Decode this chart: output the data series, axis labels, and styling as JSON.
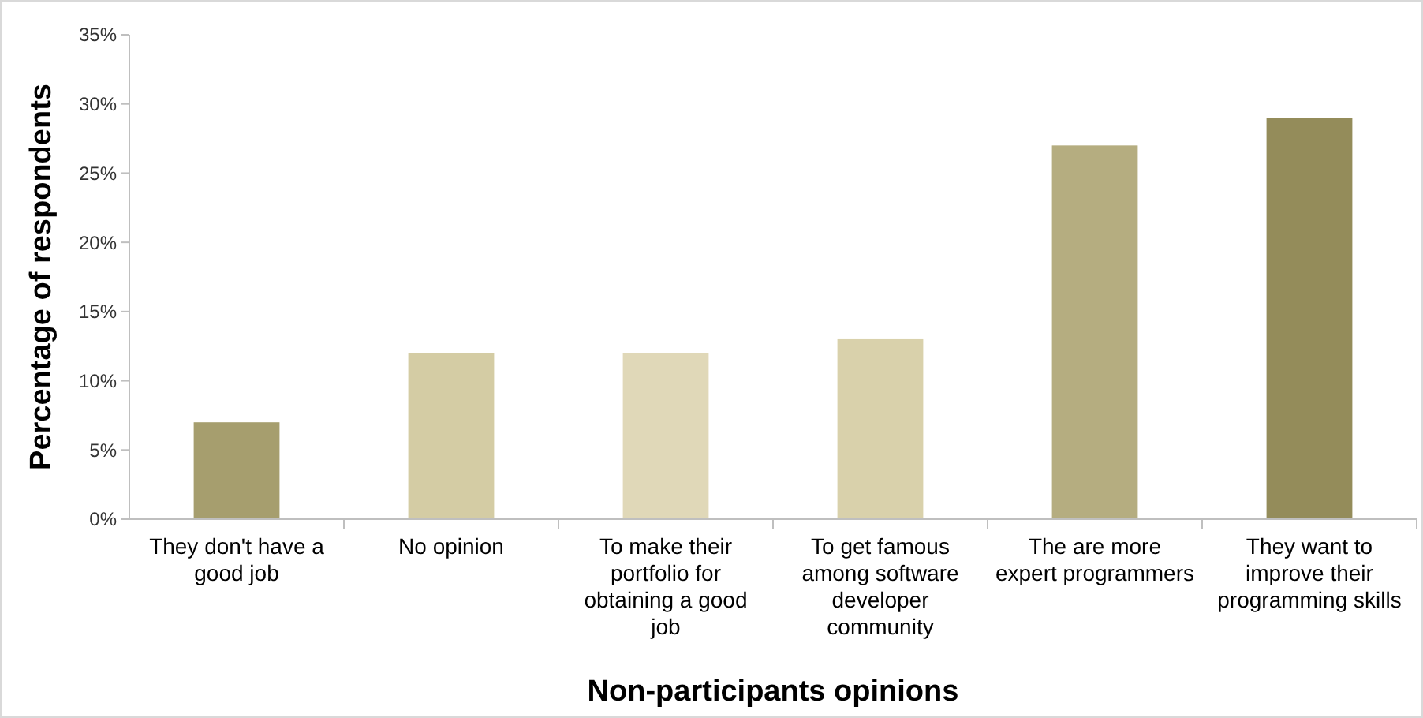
{
  "chart_data": {
    "type": "bar",
    "xlabel": "Non-participants opinions",
    "ylabel": "Percentage of respondents",
    "categories": [
      "They don't have a good job",
      "No opinion",
      "To make their portfolio for obtaining a good job",
      "To get famous among software developer community",
      "The are more expert programmers",
      "They want to improve their programming skills"
    ],
    "values": [
      7,
      12,
      12,
      13,
      27,
      29
    ],
    "colors": [
      "#a69e6e",
      "#d4cca4",
      "#e0d8b8",
      "#d9d1ab",
      "#b5ad80",
      "#948c5a"
    ],
    "ylim": [
      0,
      35
    ],
    "yticks": [
      {
        "value": 0,
        "label": "0%"
      },
      {
        "value": 5,
        "label": "5%"
      },
      {
        "value": 10,
        "label": "10%"
      },
      {
        "value": 15,
        "label": "15%"
      },
      {
        "value": 20,
        "label": "20%"
      },
      {
        "value": 25,
        "label": "25%"
      },
      {
        "value": 30,
        "label": "30%"
      },
      {
        "value": 35,
        "label": "35%"
      }
    ],
    "grid": false
  }
}
